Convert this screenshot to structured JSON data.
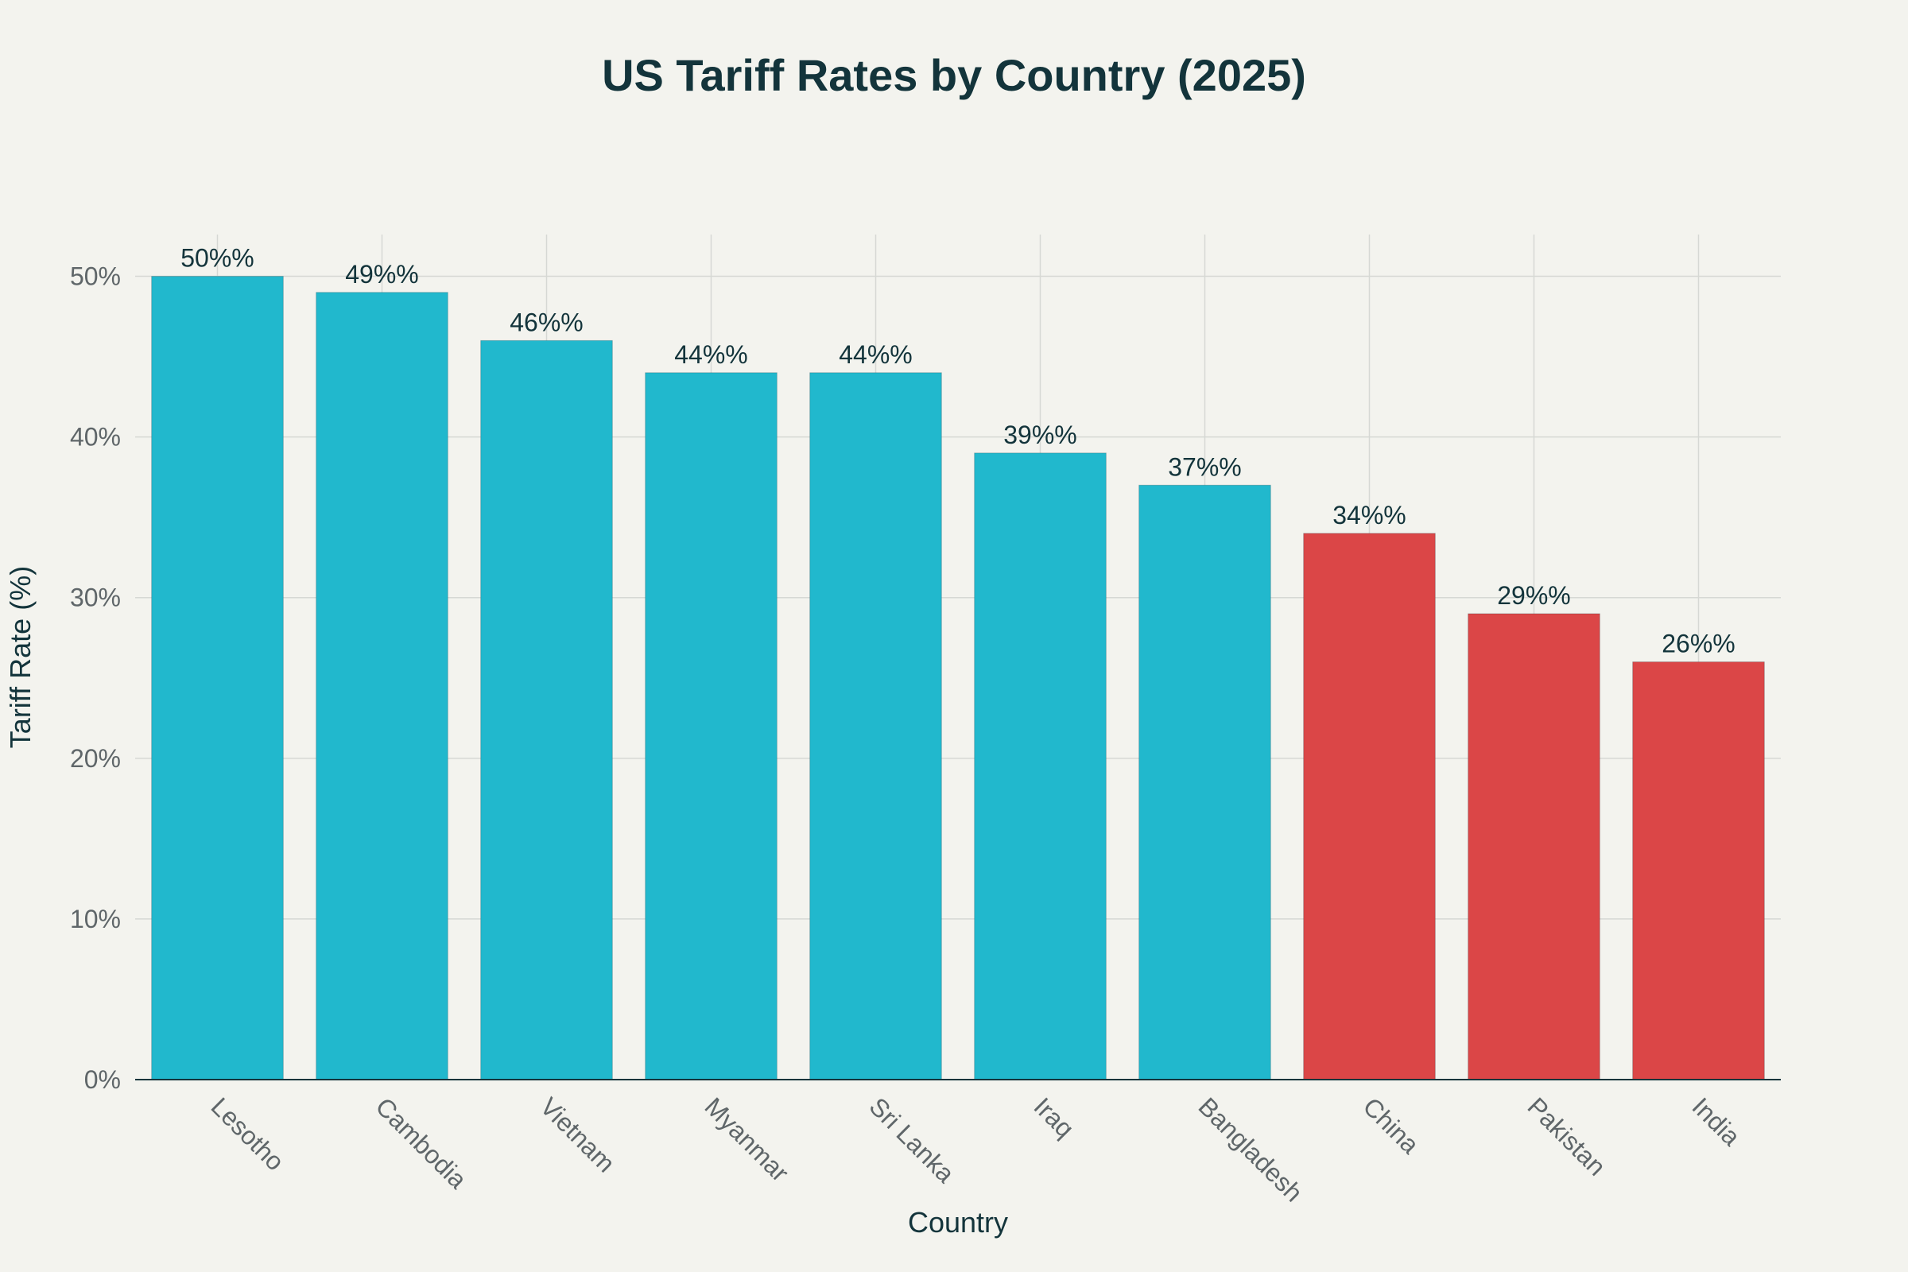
{
  "chart_data": {
    "type": "bar",
    "title": "US Tariff Rates by Country (2025)",
    "xlabel": "Country",
    "ylabel": "Tariff Rate (%)",
    "categories": [
      "Lesotho",
      "Cambodia",
      "Vietnam",
      "Myanmar",
      "Sri Lanka",
      "Iraq",
      "Bangladesh",
      "China",
      "Pakistan",
      "India"
    ],
    "values": [
      50,
      49,
      46,
      44,
      44,
      39,
      37,
      34,
      29,
      26
    ],
    "data_labels": [
      "50%%",
      "49%%",
      "46%%",
      "44%%",
      "44%%",
      "39%%",
      "37%%",
      "34%%",
      "29%%",
      "26%%"
    ],
    "bar_colors": [
      "#21b8cd",
      "#21b8cd",
      "#21b8cd",
      "#21b8cd",
      "#21b8cd",
      "#21b8cd",
      "#21b8cd",
      "#db4647",
      "#db4647",
      "#db4647"
    ],
    "ylim": [
      0,
      52.6
    ],
    "yticks": [
      0,
      10,
      20,
      30,
      40,
      50
    ],
    "ytick_labels": [
      "0%",
      "10%",
      "20%",
      "30%",
      "40%",
      "50%"
    ],
    "grid": true,
    "legend": "none",
    "colors": {
      "background": "#f3f3ee",
      "grid": "#d6d8d4",
      "axis_line": "#13343b",
      "title": "#13343b",
      "tick_text": "#5f6669"
    }
  }
}
